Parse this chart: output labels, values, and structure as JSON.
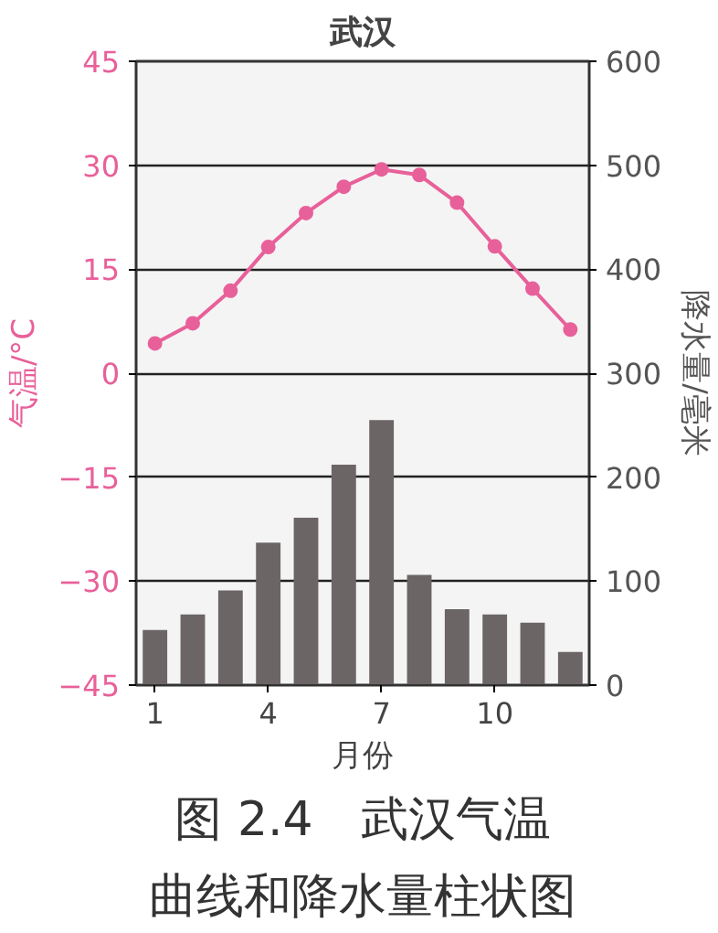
{
  "chart_data": {
    "type": "line",
    "title": "武汉",
    "xlabel": "月份",
    "ylabel": "气温/°C",
    "y2label": "降水量/毫米",
    "x": [
      1,
      2,
      3,
      4,
      5,
      6,
      7,
      8,
      9,
      10,
      11,
      12
    ],
    "xlim": [
      0.5,
      12.5
    ],
    "xticks": [
      1,
      4,
      7,
      10
    ],
    "ylim": [
      -45,
      45
    ],
    "yticks": [
      -45,
      -30,
      -15,
      0,
      15,
      30,
      45
    ],
    "y2lim": [
      0,
      600
    ],
    "y2ticks": [
      0,
      100,
      200,
      300,
      400,
      500,
      600
    ],
    "grid": "y",
    "marker": "circle",
    "series": [
      {
        "type": "bar",
        "axis": "y2",
        "color": "#6b6566",
        "values": [
          53,
          68,
          91,
          137,
          161,
          212,
          255,
          106,
          73,
          68,
          60,
          32
        ]
      },
      {
        "color": "#e8609a",
        "values": [
          4.3,
          7.2,
          11.9,
          18.2,
          23.1,
          26.9,
          29.4,
          28.6,
          24.6,
          18.3,
          12.2,
          6.3
        ]
      }
    ],
    "annotations": [
      "图 2.4　武汉气温",
      "曲线和降水量柱状图"
    ]
  }
}
